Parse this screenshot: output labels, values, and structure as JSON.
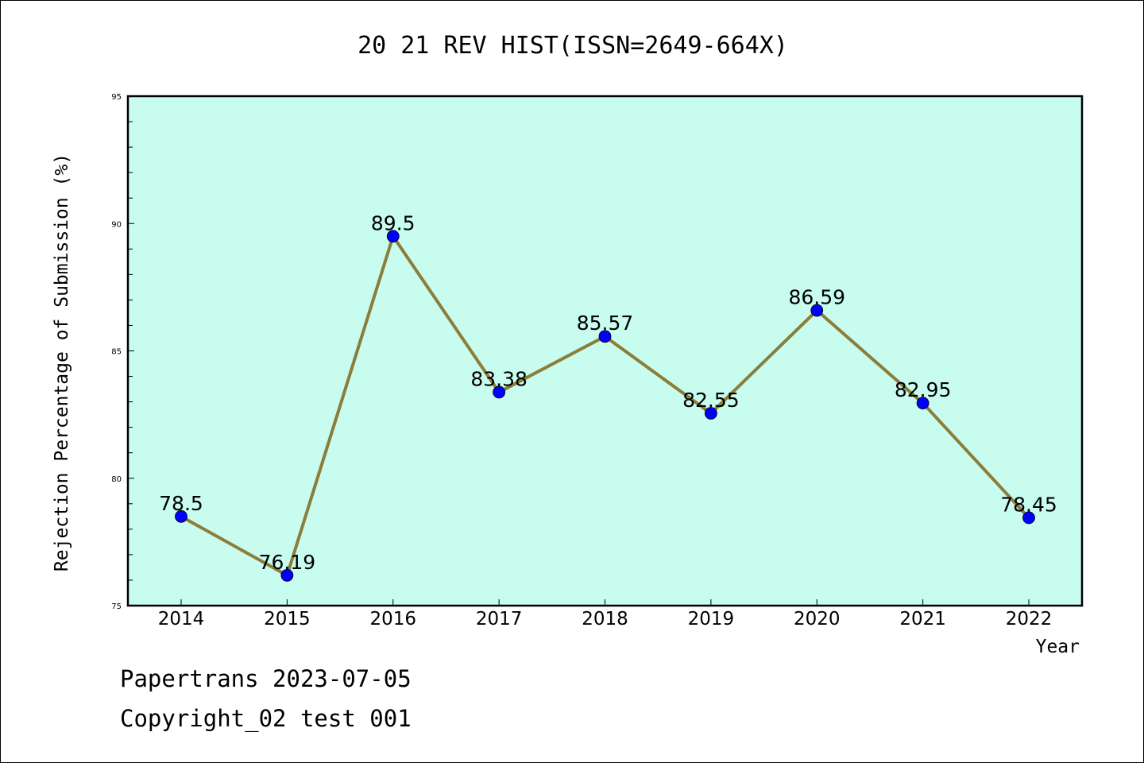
{
  "chart_data": {
    "type": "line",
    "title": "20 21 REV HIST(ISSN=2649-664X)",
    "xlabel": "Year",
    "ylabel": "Rejection Percentage of Submission (%)",
    "categories": [
      "2014",
      "2015",
      "2016",
      "2017",
      "2018",
      "2019",
      "2020",
      "2021",
      "2022"
    ],
    "series": [
      {
        "values": [
          78.5,
          76.19,
          89.5,
          83.38,
          85.57,
          82.55,
          86.59,
          82.95,
          78.45
        ],
        "data_labels": [
          "78.5",
          "76.19",
          "89.5",
          "83.38",
          "85.57",
          "82.55",
          "86.59",
          "82.95",
          "78.45"
        ]
      }
    ],
    "ylim": [
      75,
      95
    ],
    "yticks": [
      "75",
      "80",
      "85",
      "90",
      "95"
    ],
    "grid": false,
    "legend": "none",
    "colors": {
      "plot_background": "#c8fcee",
      "line": "#8b7d3a",
      "marker": "#0000ff"
    }
  },
  "footer": {
    "line1": "Papertrans 2023-07-05",
    "line2": "Copyright_02 test 001"
  }
}
